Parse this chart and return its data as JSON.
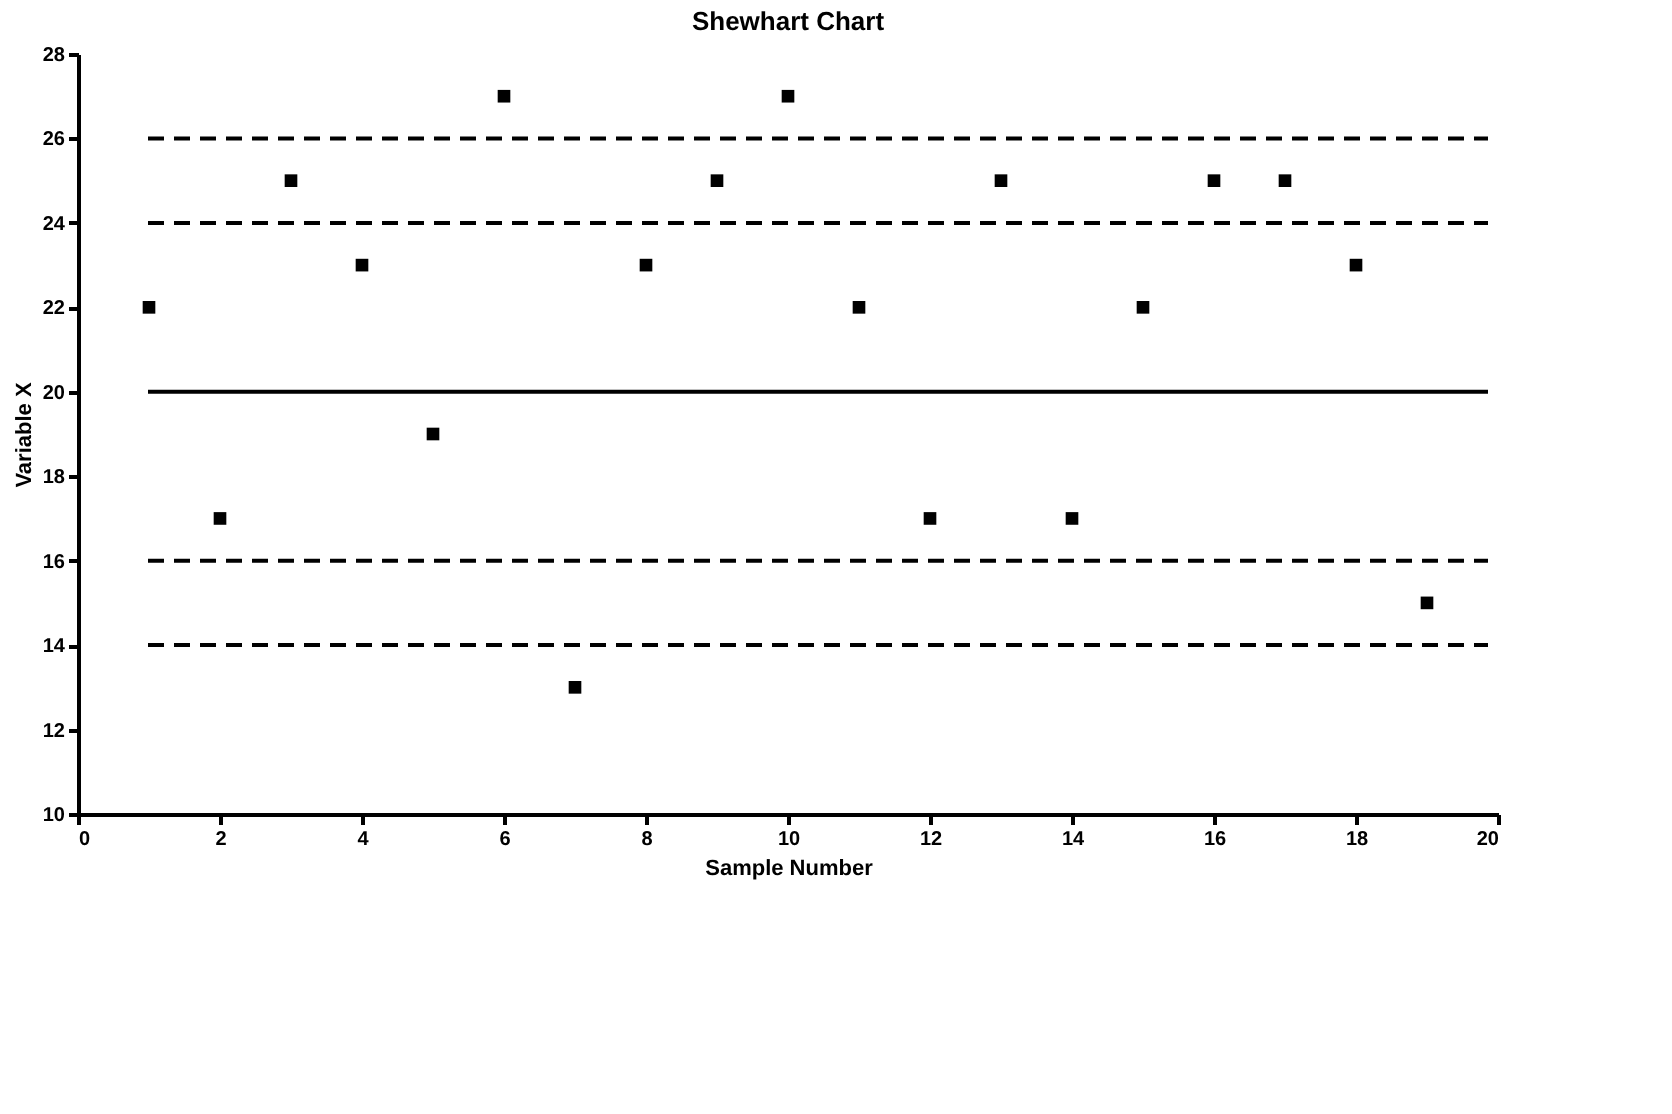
{
  "chart_data": {
    "type": "scatter",
    "title": "Shewhart Chart",
    "xlabel": "Sample Number",
    "ylabel": "Variable X",
    "x": [
      1,
      2,
      3,
      4,
      5,
      6,
      7,
      8,
      9,
      10,
      11,
      12,
      13,
      14,
      15,
      16,
      17,
      18,
      19
    ],
    "series": [
      {
        "color": "#000000",
        "values": [
          22,
          17,
          25,
          23,
          19,
          27,
          13,
          23,
          25,
          27,
          22,
          17,
          25,
          17,
          22,
          25,
          25,
          23,
          15
        ]
      }
    ],
    "marker": "square",
    "grid": false,
    "xlim": [
      0,
      20
    ],
    "xticks": [
      0,
      2,
      4,
      6,
      8,
      10,
      12,
      14,
      16,
      18,
      20
    ],
    "ylim": [
      10,
      28
    ],
    "yticks": [
      10,
      12,
      14,
      16,
      18,
      20,
      22,
      24,
      26,
      28
    ],
    "ref_lines": [
      {
        "axis": "y",
        "value": 20,
        "line_style": "solid",
        "color": "#000000"
      },
      {
        "axis": "y",
        "value": 24,
        "line_style": "dashed",
        "color": "#000000"
      },
      {
        "axis": "y",
        "value": 26,
        "line_style": "dashed",
        "color": "#000000"
      },
      {
        "axis": "y",
        "value": 16,
        "line_style": "dashed",
        "color": "#000000"
      },
      {
        "axis": "y",
        "value": 14,
        "line_style": "dashed",
        "color": "#000000"
      }
    ]
  }
}
